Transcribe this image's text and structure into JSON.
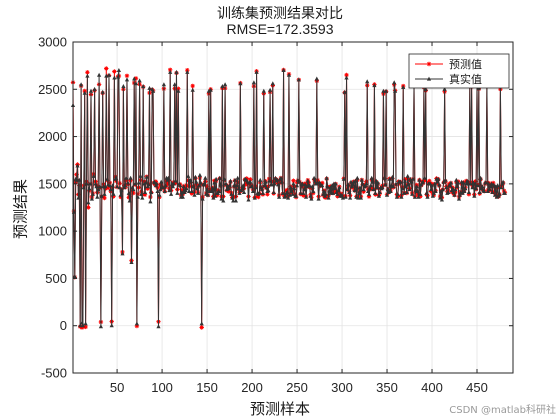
{
  "chart_data": {
    "type": "line",
    "title": "训练集预测结果对比",
    "subtitle": "RMSE=172.3593",
    "xlabel": "预测样本",
    "ylabel": "预测结果",
    "xlim": [
      1,
      490
    ],
    "ylim": [
      -500,
      3000
    ],
    "xticks": [
      50,
      100,
      150,
      200,
      250,
      300,
      350,
      400,
      450
    ],
    "yticks": [
      -500,
      0,
      500,
      1000,
      1500,
      2000,
      2500,
      3000
    ],
    "grid": true,
    "legend_position": "top-right",
    "series": [
      {
        "name": "预测值",
        "color": "#ff0000",
        "marker": "star",
        "values": [
          2573,
          1212,
          512,
          1520,
          1598,
          1705,
          1387,
          1484,
          -10,
          2536,
          -20,
          -11,
          1480,
          2482,
          -13,
          1526,
          2680,
          1250,
          1427,
          1500,
          2445,
          1362,
          1401,
          1603,
          2486,
          1525,
          1489,
          1408,
          1470,
          2552,
          1458,
          39,
          1366,
          2460,
          1496,
          1350,
          1449,
          2720,
          1538,
          1456,
          2646,
          1511,
          1421,
          43,
          1462,
          1367,
          2688,
          1575,
          1531,
          1466,
          2633,
          2640,
          1506,
          1362,
          1442,
          780,
          2501,
          1483,
          1464,
          1536,
          2643,
          1493,
          1357,
          1370,
          1533,
          691,
          1432,
          1403,
          2568,
          1491,
          2616,
          -4,
          1394,
          1462,
          2554,
          1541,
          1417,
          1389,
          2526,
          1526,
          1385,
          1512,
          1576,
          1449,
          1499,
          2462,
          1361,
          1409,
          2496,
          2484,
          1512,
          1493,
          1524,
          1498,
          1458,
          42,
          1359,
          1487,
          1487,
          1474,
          1454,
          2506,
          1420,
          1466,
          1531,
          1496,
          1535,
          1453,
          2706,
          1430,
          1477,
          1513,
          1505,
          2507,
          1509,
          2672,
          1440,
          2506,
          1486,
          1495,
          1383,
          1437,
          1391,
          1474,
          1416,
          1452,
          1485,
          2702,
          1535,
          1472,
          1519,
          1513,
          1398,
          2536,
          1474,
          1414,
          1559,
          1493,
          1452,
          1411,
          1477,
          1564,
          1498,
          -19,
          1361,
          1490,
          1495,
          1526,
          1402,
          1474,
          1382,
          2453,
          1443,
          2500,
          1439,
          1458,
          1366,
          1533,
          1384,
          1531,
          1378,
          1430,
          1424,
          1557,
          1479,
          1367,
          2512,
          1366,
          1538,
          2511,
          1487,
          1430,
          1476,
          1420,
          1460,
          1520,
          1404,
          1356,
          1355,
          1469,
          1537,
          1366,
          1480,
          1518,
          1444,
          1406,
          2565,
          1429,
          1459,
          1450,
          1452,
          1545,
          1492,
          1557,
          1505,
          1365,
          1502,
          1548,
          1478,
          1479,
          1442,
          2533,
          1356,
          1474,
          2691,
          1374,
          1361,
          1398,
          1517,
          1467,
          1438,
          1388,
          2456,
          1473,
          1528,
          1457,
          1390,
          1474,
          1554,
          2470,
          1535,
          1522,
          2540,
          1399,
          1522,
          1553,
          1543,
          1531,
          1504,
          1380,
          1535,
          1561,
          1512,
          1394,
          2704,
          1367,
          1377,
          1427,
          1435,
          1367,
          2660,
          1397,
          1470,
          1426,
          1416,
          1533,
          1474,
          1391,
          1359,
          1516,
          1537,
          2600,
          1518,
          1392,
          1479,
          1497,
          1376,
          1458,
          1504,
          1369,
          1489,
          1539,
          1512,
          1464,
          1384,
          1358,
          1452,
          1403,
          1545,
          1521,
          1526,
          2589,
          1538,
          1365,
          1505,
          1478,
          1497,
          1509,
          1383,
          1430,
          1357,
          1357,
          1554,
          1470,
          1375,
          1416,
          1473,
          1437,
          1474,
          1403,
          1485,
          1414,
          1500,
          1427,
          1368,
          1409,
          1469,
          1391,
          1395,
          1372,
          1371,
          1556,
          2465,
          1371,
          2651,
          1446,
          1480,
          1421,
          1378,
          1510,
          1466,
          1462,
          1523,
          1429,
          1528,
          1365,
          1540,
          1371,
          1412,
          1454,
          1368,
          1542,
          1492,
          1417,
          1489,
          1473,
          1526,
          2542,
          1444,
          1365,
          1440,
          1466,
          1542,
          1542,
          1446,
          2552,
          1387,
          1521,
          1457,
          1497,
          1377,
          1402,
          1451,
          1463,
          1480,
          2452,
          1556,
          1489,
          2476,
          1390,
          1444,
          1419,
          1555,
          1425,
          1468,
          1557,
          1463,
          2548,
          2488,
          1491,
          1387,
          1366,
          1524,
          1505,
          1519,
          1376,
          1467,
          2534,
          1405,
          1549,
          1489,
          1403,
          1558,
          1493,
          1451,
          1538,
          1524,
          1403,
          1551,
          2547,
          1365,
          1431,
          1488,
          1399,
          1375,
          1541,
          1367,
          1484,
          1522,
          1506,
          2520,
          1535,
          2487,
          1388,
          1376,
          1512,
          1531,
          1503,
          1419,
          1501,
          1384,
          1381,
          1495,
          1428,
          1557,
          1511,
          1549,
          1480,
          1369,
          1427,
          1357,
          1439,
          1516,
          2474,
          1528,
          1472,
          1421,
          1428,
          1498,
          1470,
          1508,
          1413,
          1463,
          1400,
          1381,
          1414,
          1519,
          1461,
          1524,
          1363,
          1393,
          1416,
          1500,
          1409,
          1515,
          1437,
          1458,
          1531,
          1522,
          1513,
          1390,
          2544,
          1516,
          2526,
          1478,
          1502,
          1388,
          1525,
          1443,
          2540,
          1495,
          2505,
          1396,
          1549,
          1469,
          1448,
          1430,
          1422,
          1500,
          1516,
          2541,
          1433,
          1508,
          1432,
          1488,
          1498,
          1422,
          1510,
          1473,
          1403,
          1454,
          1371,
          1460,
          1365,
          1391,
          2501,
          1470,
          1489,
          1511,
          1427,
          1406
        ]
      },
      {
        "name": "真实值",
        "color": "#333333",
        "marker": "triangle",
        "values": [
          2330,
          1200,
          520,
          1550,
          1540,
          1690,
          1350,
          1540,
          0,
          2550,
          30,
          0,
          1460,
          2460,
          20,
          1500,
          2640,
          1300,
          1450,
          1500,
          2480,
          1340,
          1390,
          1580,
          2500,
          1500,
          1470,
          1360,
          1440,
          2650,
          1470,
          -10,
          1370,
          2470,
          1470,
          1390,
          1470,
          2640,
          1550,
          1490,
          2650,
          1480,
          1440,
          0,
          1480,
          1390,
          2620,
          1550,
          1560,
          1470,
          2630,
          2700,
          1460,
          1380,
          1430,
          760,
          2530,
          1460,
          1480,
          1560,
          2600,
          1510,
          1400,
          1320,
          1560,
          670,
          1460,
          1440,
          2610,
          1500,
          2560,
          20,
          1360,
          1510,
          2590,
          1580,
          1390,
          1350,
          2530,
          1500,
          1410,
          1510,
          1570,
          1470,
          1490,
          2510,
          1310,
          1410,
          2500,
          2480,
          1520,
          1510,
          1480,
          1500,
          1420,
          -10,
          1380,
          1440,
          1520,
          1460,
          1460,
          2550,
          1420,
          1480,
          1560,
          1540,
          1560,
          1430,
          2680,
          1390,
          1500,
          1470,
          1500,
          2550,
          1530,
          2680,
          1400,
          2480,
          1500,
          1480,
          1360,
          1410,
          1360,
          1470,
          1410,
          1430,
          1450,
          2680,
          1580,
          1420,
          1540,
          1530,
          1420,
          2490,
          1470,
          1380,
          1570,
          1520,
          1450,
          1400,
          1480,
          1590,
          1510,
          20,
          1340,
          1490,
          1500,
          1560,
          1390,
          1440,
          1380,
          2480,
          1420,
          2490,
          1420,
          1450,
          1350,
          1510,
          1370,
          1550,
          1400,
          1400,
          1420,
          1560,
          1490,
          1340,
          2530,
          1320,
          1550,
          2550,
          1500,
          1440,
          1470,
          1450,
          1480,
          1530,
          1390,
          1350,
          1320,
          1480,
          1540,
          1320,
          1480,
          1560,
          1450,
          1400,
          2560,
          1430,
          1450,
          1480,
          1410,
          1550,
          1540,
          1540,
          1520,
          1330,
          1510,
          1520,
          1470,
          1470,
          1420,
          2570,
          1350,
          1460,
          2680,
          1400,
          1390,
          1400,
          1540,
          1460,
          1440,
          1400,
          2480,
          1480,
          1520,
          1460,
          1420,
          1430,
          1530,
          2490,
          1490,
          1490,
          2560,
          1410,
          1500,
          1560,
          1530,
          1540,
          1490,
          1360,
          1550,
          1560,
          1520,
          1400,
          2700,
          1360,
          1370,
          1400,
          1410,
          1350,
          2650,
          1380,
          1460,
          1420,
          1390,
          1500,
          1450,
          1370,
          1370,
          1480,
          1540,
          2600,
          1520,
          1400,
          1490,
          1500,
          1400,
          1440,
          1490,
          1360,
          1470,
          1530,
          1480,
          1480,
          1370,
          1340,
          1470,
          1420,
          1560,
          1530,
          1500,
          2610,
          1510,
          1340,
          1510,
          1500,
          1480,
          1480,
          1390,
          1420,
          1370,
          1390,
          1560,
          1470,
          1350,
          1420,
          1460,
          1400,
          1480,
          1400,
          1500,
          1450,
          1500,
          1410,
          1390,
          1430,
          1460,
          1370,
          1380,
          1370,
          1350,
          1550,
          2470,
          1360,
          2620,
          1440,
          1490,
          1410,
          1350,
          1520,
          1470,
          1490,
          1520,
          1430,
          1530,
          1360,
          1560,
          1350,
          1400,
          1460,
          1350,
          1540,
          1500,
          1440,
          1470,
          1480,
          1500,
          2580,
          1420,
          1390,
          1450,
          1480,
          1560,
          1520,
          1440,
          2540,
          1400,
          1530,
          1460,
          1510,
          1370,
          1410,
          1460,
          1450,
          1460,
          2480,
          1560,
          1490,
          2480,
          1380,
          1440,
          1410,
          1550,
          1420,
          1480,
          1570,
          1470,
          2570,
          2480,
          1500,
          1360,
          1390,
          1520,
          1520,
          1520,
          1360,
          1450,
          2520,
          1400,
          1530,
          1470,
          1410,
          1580,
          1490,
          1440,
          1550,
          1520,
          1390,
          1550,
          2560,
          1360,
          1430,
          1470,
          1420,
          1360,
          1540,
          1390,
          1490,
          1510,
          1520,
          2540,
          1560,
          2500,
          1400,
          1360,
          1500,
          1500,
          1500,
          1440,
          1480,
          1370,
          1400,
          1500,
          1420,
          1550,
          1520,
          1550,
          1490,
          1350,
          1420,
          1330,
          1440,
          1520,
          2500,
          1540,
          1460,
          1400,
          1410,
          1480,
          1480,
          1510,
          1430,
          1450,
          1410,
          1380,
          1440,
          1540,
          1470,
          1510,
          1340,
          1380,
          1410,
          1520,
          1400,
          1510,
          1420,
          1450,
          1500,
          1530,
          1500,
          1410,
          2560,
          1500,
          2540,
          1460,
          1510,
          1370,
          1500,
          1450,
          2560,
          1480,
          2510,
          1410,
          1560,
          1450,
          1470,
          1430,
          1420,
          1510,
          1510,
          2560,
          1420,
          1500,
          1440,
          1470,
          1500,
          1410,
          1490,
          1480,
          1380,
          1470,
          1360,
          1480,
          1370,
          1390,
          2540,
          1460,
          1500,
          1520,
          1400,
          1400
        ]
      }
    ]
  },
  "watermark": "CSDN @matlab科研社"
}
